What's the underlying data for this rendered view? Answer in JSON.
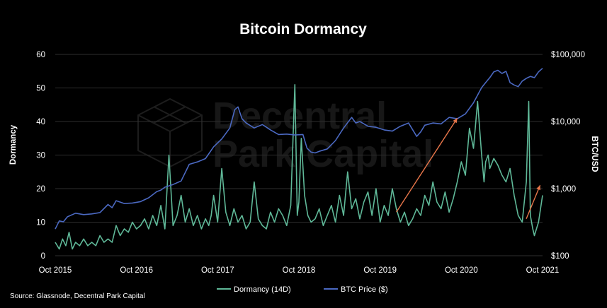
{
  "chart_data": {
    "type": "line",
    "title": "Bitcoin Dormancy",
    "ylabel": "Dormancy",
    "y2label": "BTC/USD",
    "source": "Source: Glassnode, Decentral Park Capital",
    "watermark": {
      "line1": "Decentral",
      "line2": "Park Capital"
    },
    "x_ticks": [
      "Oct 2015",
      "Oct 2016",
      "Oct 2017",
      "Oct 2018",
      "Oct 2019",
      "Oct 2020",
      "Oct 2021"
    ],
    "x_range": [
      2015.75,
      2021.75
    ],
    "ylim": [
      0,
      60
    ],
    "y_ticks": [
      0,
      10,
      20,
      30,
      40,
      50,
      60
    ],
    "y_tick_labels": [
      "0",
      "10",
      "20",
      "30",
      "40",
      "50",
      "60"
    ],
    "y2lim": [
      100,
      100000
    ],
    "y2_scale": "log",
    "y2_ticks": [
      100,
      1000,
      10000,
      100000
    ],
    "y2_tick_labels": [
      "$100",
      "$1,000",
      "$10,000",
      "$100,000"
    ],
    "grid": true,
    "legend_position": "bottom-center",
    "colors": {
      "dormancy": "#5fb898",
      "btc_price": "#4b69c2",
      "arrow": "#e8764a",
      "grid": "#2e2e2e"
    },
    "series": [
      {
        "name": "Dormancy (14D)",
        "axis": "left",
        "color": "#5fb898",
        "x": [
          2015.75,
          2015.8,
          2015.84,
          2015.88,
          2015.92,
          2015.96,
          2016.0,
          2016.05,
          2016.1,
          2016.15,
          2016.2,
          2016.25,
          2016.3,
          2016.35,
          2016.4,
          2016.45,
          2016.5,
          2016.55,
          2016.6,
          2016.65,
          2016.7,
          2016.75,
          2016.8,
          2016.85,
          2016.9,
          2016.95,
          2017.0,
          2017.05,
          2017.1,
          2017.15,
          2017.2,
          2017.25,
          2017.3,
          2017.35,
          2017.4,
          2017.45,
          2017.5,
          2017.55,
          2017.6,
          2017.64,
          2017.67,
          2017.7,
          2017.75,
          2017.8,
          2017.85,
          2017.9,
          2017.95,
          2018.0,
          2018.05,
          2018.1,
          2018.15,
          2018.2,
          2018.25,
          2018.3,
          2018.35,
          2018.4,
          2018.45,
          2018.5,
          2018.55,
          2018.6,
          2018.65,
          2018.7,
          2018.73,
          2018.75,
          2018.78,
          2018.82,
          2018.86,
          2018.9,
          2018.95,
          2019.0,
          2019.05,
          2019.1,
          2019.15,
          2019.2,
          2019.25,
          2019.3,
          2019.35,
          2019.4,
          2019.45,
          2019.5,
          2019.55,
          2019.6,
          2019.65,
          2019.7,
          2019.75,
          2019.8,
          2019.85,
          2019.9,
          2019.95,
          2020.0,
          2020.05,
          2020.1,
          2020.15,
          2020.2,
          2020.25,
          2020.3,
          2020.35,
          2020.4,
          2020.45,
          2020.5,
          2020.55,
          2020.6,
          2020.65,
          2020.7,
          2020.75,
          2020.8,
          2020.85,
          2020.9,
          2020.95,
          2021.0,
          2021.03,
          2021.05,
          2021.08,
          2021.1,
          2021.15,
          2021.2,
          2021.25,
          2021.3,
          2021.35,
          2021.4,
          2021.45,
          2021.5,
          2021.55,
          2021.58,
          2021.6,
          2021.63,
          2021.65,
          2021.7,
          2021.75
        ],
        "values": [
          4,
          2,
          5,
          3,
          7,
          2,
          4,
          3,
          5,
          3,
          4,
          3,
          6,
          4,
          5,
          4,
          9,
          6,
          8,
          7,
          10,
          8,
          9,
          11,
          8,
          12,
          9,
          15,
          8,
          30,
          9,
          12,
          18,
          10,
          14,
          9,
          12,
          8,
          11,
          9,
          12,
          18,
          10,
          26,
          13,
          9,
          14,
          10,
          12,
          8,
          10,
          22,
          11,
          9,
          8,
          13,
          10,
          14,
          12,
          9,
          15,
          51,
          12,
          16,
          35,
          18,
          12,
          10,
          11,
          14,
          9,
          12,
          15,
          10,
          18,
          12,
          25,
          14,
          17,
          11,
          16,
          19,
          12,
          20,
          10,
          15,
          12,
          20,
          14,
          10,
          13,
          9,
          11,
          14,
          12,
          18,
          15,
          22,
          16,
          14,
          19,
          13,
          17,
          22,
          28,
          24,
          38,
          32,
          46,
          30,
          22,
          28,
          30,
          26,
          29,
          27,
          24,
          22,
          26,
          18,
          12,
          10,
          22,
          46,
          12,
          8,
          6,
          10,
          18
        ]
      },
      {
        "name": "BTC Price ($)",
        "axis": "right",
        "color": "#4b69c2",
        "x": [
          2015.75,
          2015.8,
          2015.85,
          2015.9,
          2016.0,
          2016.1,
          2016.2,
          2016.3,
          2016.4,
          2016.45,
          2016.5,
          2016.6,
          2016.7,
          2016.8,
          2016.9,
          2017.0,
          2017.05,
          2017.1,
          2017.2,
          2017.3,
          2017.4,
          2017.5,
          2017.6,
          2017.7,
          2017.8,
          2017.9,
          2017.96,
          2018.0,
          2018.05,
          2018.1,
          2018.2,
          2018.3,
          2018.4,
          2018.5,
          2018.6,
          2018.7,
          2018.8,
          2018.85,
          2018.9,
          2018.95,
          2019.0,
          2019.1,
          2019.2,
          2019.3,
          2019.4,
          2019.45,
          2019.5,
          2019.6,
          2019.7,
          2019.8,
          2019.9,
          2020.0,
          2020.1,
          2020.2,
          2020.25,
          2020.3,
          2020.4,
          2020.5,
          2020.6,
          2020.7,
          2020.8,
          2020.9,
          2021.0,
          2021.05,
          2021.1,
          2021.15,
          2021.2,
          2021.25,
          2021.3,
          2021.35,
          2021.4,
          2021.45,
          2021.5,
          2021.55,
          2021.6,
          2021.65,
          2021.7,
          2021.75
        ],
        "values": [
          250,
          330,
          320,
          380,
          430,
          410,
          420,
          440,
          580,
          520,
          660,
          600,
          610,
          640,
          730,
          900,
          950,
          1050,
          1150,
          1300,
          2300,
          2500,
          2800,
          4200,
          5500,
          8000,
          15000,
          16500,
          11000,
          9500,
          8000,
          9000,
          7500,
          6400,
          6500,
          6300,
          6400,
          4000,
          3500,
          3400,
          3600,
          3900,
          5200,
          8000,
          11500,
          9500,
          10000,
          8500,
          8200,
          7500,
          7200,
          8500,
          9500,
          6000,
          7000,
          8800,
          9500,
          9200,
          11500,
          11000,
          13000,
          19000,
          32000,
          38000,
          45000,
          55000,
          58000,
          52000,
          56000,
          38000,
          35000,
          33000,
          40000,
          44000,
          47000,
          45000,
          55000,
          62000
        ]
      }
    ],
    "annotations": [
      {
        "type": "arrow",
        "from": [
          2019.95,
          13
        ],
        "to": [
          2020.7,
          41
        ]
      },
      {
        "type": "arrow",
        "from": [
          2021.55,
          11
        ],
        "to": [
          2021.72,
          21
        ]
      }
    ]
  }
}
